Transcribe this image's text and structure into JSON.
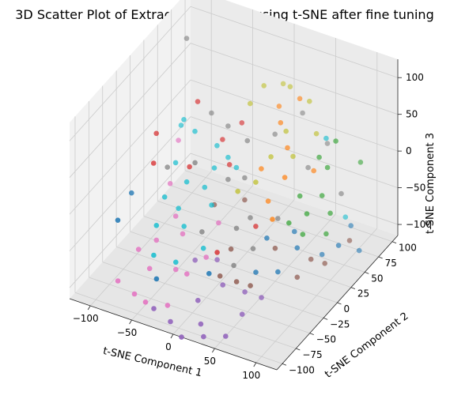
{
  "chart_data": {
    "type": "scatter3d",
    "title": "3D Scatter Plot of Extracted Features using t-SNE after fine tuning",
    "xlabel": "t-SNE Component 1",
    "ylabel": "t-SNE Component 2",
    "zlabel": "t-SNE Component 3",
    "xlim": [
      -125,
      125
    ],
    "ylim": [
      -110,
      110
    ],
    "zlim": [
      -115,
      125
    ],
    "xticks": [
      -100,
      -50,
      0,
      50,
      100
    ],
    "yticks": [
      -100,
      -75,
      -50,
      -25,
      0,
      25,
      50,
      75,
      100
    ],
    "zticks": [
      -100,
      -50,
      0,
      50,
      100
    ],
    "grid": true,
    "colors": {
      "blue": "#1f77b4",
      "orange": "#ff7f0e",
      "green": "#2ca02c",
      "red": "#d62728",
      "purple": "#9467bd",
      "brown": "#8c564b",
      "pink": "#e377c2",
      "gray": "#7f7f7f",
      "olive": "#bcbd22",
      "cyan": "#17becf"
    },
    "points": [
      {
        "x": -90,
        "y": 50,
        "z": 120,
        "c": "gray"
      },
      {
        "x": 40,
        "y": 60,
        "z": 80,
        "c": "orange"
      },
      {
        "x": 15,
        "y": 60,
        "z": 60,
        "c": "orange"
      },
      {
        "x": 30,
        "y": 40,
        "z": 60,
        "c": "orange"
      },
      {
        "x": 45,
        "y": 30,
        "z": 40,
        "c": "orange"
      },
      {
        "x": 55,
        "y": 10,
        "z": 20,
        "c": "orange"
      },
      {
        "x": 70,
        "y": 40,
        "z": 10,
        "c": "orange"
      },
      {
        "x": 20,
        "y": 20,
        "z": 10,
        "c": "orange"
      },
      {
        "x": 60,
        "y": -20,
        "z": -10,
        "c": "orange"
      },
      {
        "x": 35,
        "y": 10,
        "z": -20,
        "c": "orange"
      },
      {
        "x": -10,
        "y": 70,
        "z": 70,
        "c": "olive"
      },
      {
        "x": 15,
        "y": 80,
        "z": 70,
        "c": "olive"
      },
      {
        "x": 45,
        "y": 70,
        "z": 70,
        "c": "olive"
      },
      {
        "x": 0,
        "y": 90,
        "z": 60,
        "c": "olive"
      },
      {
        "x": -20,
        "y": 60,
        "z": 50,
        "c": "olive"
      },
      {
        "x": 30,
        "y": 50,
        "z": 40,
        "c": "olive"
      },
      {
        "x": 60,
        "y": 60,
        "z": 40,
        "c": "olive"
      },
      {
        "x": 25,
        "y": 30,
        "z": 20,
        "c": "olive"
      },
      {
        "x": 45,
        "y": 40,
        "z": 20,
        "c": "olive"
      },
      {
        "x": 20,
        "y": 10,
        "z": 0,
        "c": "olive"
      },
      {
        "x": 5,
        "y": 0,
        "z": -10,
        "c": "olive"
      },
      {
        "x": 85,
        "y": 40,
        "z": 60,
        "c": "cyan"
      },
      {
        "x": -60,
        "y": 20,
        "z": 30,
        "c": "cyan"
      },
      {
        "x": -40,
        "y": 30,
        "z": 10,
        "c": "cyan"
      },
      {
        "x": -20,
        "y": 20,
        "z": 10,
        "c": "cyan"
      },
      {
        "x": -30,
        "y": 10,
        "z": 0,
        "c": "cyan"
      },
      {
        "x": -10,
        "y": 20,
        "z": 0,
        "c": "cyan"
      },
      {
        "x": -50,
        "y": -10,
        "z": -10,
        "c": "cyan"
      },
      {
        "x": -35,
        "y": 0,
        "z": -20,
        "c": "cyan"
      },
      {
        "x": -70,
        "y": -20,
        "z": -30,
        "c": "cyan"
      },
      {
        "x": -20,
        "y": -10,
        "z": -30,
        "c": "cyan"
      },
      {
        "x": -60,
        "y": -50,
        "z": -40,
        "c": "cyan"
      },
      {
        "x": -40,
        "y": -30,
        "z": -50,
        "c": "cyan"
      },
      {
        "x": -10,
        "y": -40,
        "z": -60,
        "c": "cyan"
      },
      {
        "x": -50,
        "y": -70,
        "z": -60,
        "c": "cyan"
      },
      {
        "x": -30,
        "y": -60,
        "z": -70,
        "c": "cyan"
      },
      {
        "x": 95,
        "y": 60,
        "z": -60,
        "c": "cyan"
      },
      {
        "x": -110,
        "y": -20,
        "z": -40,
        "c": "blue"
      },
      {
        "x": -100,
        "y": -60,
        "z": -40,
        "c": "blue"
      },
      {
        "x": -40,
        "y": -80,
        "z": -80,
        "c": "blue"
      },
      {
        "x": 10,
        "y": -60,
        "z": -70,
        "c": "blue"
      },
      {
        "x": 40,
        "y": 0,
        "z": -60,
        "c": "blue"
      },
      {
        "x": 60,
        "y": 20,
        "z": -60,
        "c": "blue"
      },
      {
        "x": 70,
        "y": 10,
        "z": -70,
        "c": "blue"
      },
      {
        "x": 100,
        "y": 40,
        "z": -80,
        "c": "blue"
      },
      {
        "x": 95,
        "y": 70,
        "z": -80,
        "c": "blue"
      },
      {
        "x": 40,
        "y": -20,
        "z": -90,
        "c": "blue"
      },
      {
        "x": 60,
        "y": -10,
        "z": -90,
        "c": "blue"
      },
      {
        "x": 80,
        "y": 40,
        "z": -100,
        "c": "blue"
      },
      {
        "x": 105,
        "y": 70,
        "z": -110,
        "c": "blue"
      },
      {
        "x": 90,
        "y": 50,
        "z": 50,
        "c": "green"
      },
      {
        "x": 70,
        "y": 50,
        "z": 20,
        "c": "green"
      },
      {
        "x": 80,
        "y": 50,
        "z": 10,
        "c": "green"
      },
      {
        "x": 100,
        "y": 80,
        "z": 0,
        "c": "green"
      },
      {
        "x": 60,
        "y": 30,
        "z": -20,
        "c": "green"
      },
      {
        "x": 80,
        "y": 40,
        "z": -20,
        "c": "green"
      },
      {
        "x": 75,
        "y": 20,
        "z": -30,
        "c": "green"
      },
      {
        "x": 90,
        "y": 40,
        "z": -40,
        "c": "green"
      },
      {
        "x": 60,
        "y": 10,
        "z": -40,
        "c": "green"
      },
      {
        "x": 70,
        "y": 20,
        "z": -60,
        "c": "green"
      },
      {
        "x": 85,
        "y": 40,
        "z": -70,
        "c": "green"
      },
      {
        "x": -70,
        "y": 40,
        "z": 50,
        "c": "red"
      },
      {
        "x": -100,
        "y": 10,
        "z": 20,
        "c": "red"
      },
      {
        "x": -30,
        "y": 60,
        "z": 20,
        "c": "red"
      },
      {
        "x": -40,
        "y": 40,
        "z": 10,
        "c": "red"
      },
      {
        "x": -90,
        "y": -10,
        "z": 0,
        "c": "red"
      },
      {
        "x": -60,
        "y": 10,
        "z": -10,
        "c": "red"
      },
      {
        "x": -25,
        "y": 30,
        "z": -10,
        "c": "red"
      },
      {
        "x": 20,
        "y": 10,
        "z": -60,
        "c": "red"
      },
      {
        "x": 0,
        "y": -30,
        "z": -70,
        "c": "red"
      },
      {
        "x": -80,
        "y": 20,
        "z": 10,
        "c": "pink"
      },
      {
        "x": -70,
        "y": -10,
        "z": -20,
        "c": "pink"
      },
      {
        "x": -50,
        "y": -30,
        "z": -40,
        "c": "pink"
      },
      {
        "x": -60,
        "y": -50,
        "z": -60,
        "c": "pink"
      },
      {
        "x": -35,
        "y": -40,
        "z": -50,
        "c": "pink"
      },
      {
        "x": -75,
        "y": -60,
        "z": -70,
        "c": "pink"
      },
      {
        "x": -55,
        "y": -70,
        "z": -80,
        "c": "pink"
      },
      {
        "x": -30,
        "y": -60,
        "z": -80,
        "c": "pink"
      },
      {
        "x": -80,
        "y": -90,
        "z": -90,
        "c": "pink"
      },
      {
        "x": -60,
        "y": -90,
        "z": -100,
        "c": "pink"
      },
      {
        "x": -40,
        "y": -100,
        "z": -95,
        "c": "pink"
      },
      {
        "x": -10,
        "y": -70,
        "z": -70,
        "c": "pink"
      },
      {
        "x": 0,
        "y": -50,
        "z": -60,
        "c": "pink"
      },
      {
        "x": -20,
        "y": -90,
        "z": -100,
        "c": "pink"
      },
      {
        "x": -5,
        "y": -20,
        "z": -40,
        "c": "pink"
      },
      {
        "x": -20,
        "y": -40,
        "z": -80,
        "c": "purple"
      },
      {
        "x": 0,
        "y": -30,
        "z": -80,
        "c": "purple"
      },
      {
        "x": 20,
        "y": -50,
        "z": -90,
        "c": "purple"
      },
      {
        "x": 10,
        "y": -80,
        "z": -90,
        "c": "purple"
      },
      {
        "x": 40,
        "y": -40,
        "z": -100,
        "c": "purple"
      },
      {
        "x": -10,
        "y": -100,
        "z": -110,
        "c": "purple"
      },
      {
        "x": 20,
        "y": -90,
        "z": -110,
        "c": "purple"
      },
      {
        "x": 50,
        "y": -60,
        "z": -110,
        "c": "purple"
      },
      {
        "x": 30,
        "y": -100,
        "z": -115,
        "c": "purple"
      },
      {
        "x": -30,
        "y": -100,
        "z": -100,
        "c": "purple"
      },
      {
        "x": 60,
        "y": -40,
        "z": -100,
        "c": "purple"
      },
      {
        "x": 50,
        "y": -90,
        "z": -115,
        "c": "purple"
      },
      {
        "x": 10,
        "y": -110,
        "z": -115,
        "c": "purple"
      },
      {
        "x": -40,
        "y": 50,
        "z": 20,
        "c": "gray"
      },
      {
        "x": -10,
        "y": 40,
        "z": 20,
        "c": "gray"
      },
      {
        "x": 10,
        "y": 60,
        "z": 20,
        "c": "gray"
      },
      {
        "x": -80,
        "y": 0,
        "z": -10,
        "c": "gray"
      },
      {
        "x": -20,
        "y": 20,
        "z": -20,
        "c": "gray"
      },
      {
        "x": 0,
        "y": 20,
        "z": -10,
        "c": "gray"
      },
      {
        "x": 50,
        "y": 60,
        "z": -10,
        "c": "gray"
      },
      {
        "x": 90,
        "y": 60,
        "z": -30,
        "c": "gray"
      },
      {
        "x": 20,
        "y": 0,
        "z": -40,
        "c": "gray"
      },
      {
        "x": 10,
        "y": -10,
        "z": -50,
        "c": "gray"
      },
      {
        "x": -25,
        "y": -20,
        "z": -60,
        "c": "gray"
      },
      {
        "x": 40,
        "y": 20,
        "z": -50,
        "c": "gray"
      },
      {
        "x": 30,
        "y": -10,
        "z": -70,
        "c": "gray"
      },
      {
        "x": 20,
        "y": -30,
        "z": -80,
        "c": "gray"
      },
      {
        "x": 30,
        "y": -40,
        "z": -90,
        "c": "brown"
      },
      {
        "x": 0,
        "y": 20,
        "z": -40,
        "c": "brown"
      },
      {
        "x": -30,
        "y": 10,
        "z": -50,
        "c": "brown"
      },
      {
        "x": 10,
        "y": -20,
        "z": -70,
        "c": "brown"
      },
      {
        "x": 50,
        "y": 0,
        "z": -70,
        "c": "brown"
      },
      {
        "x": 10,
        "y": -40,
        "z": -90,
        "c": "brown"
      },
      {
        "x": 40,
        "y": -30,
        "z": -100,
        "c": "brown"
      },
      {
        "x": 80,
        "y": 20,
        "z": -90,
        "c": "brown"
      },
      {
        "x": 100,
        "y": 60,
        "z": -90,
        "c": "brown"
      },
      {
        "x": 90,
        "y": 30,
        "z": -100,
        "c": "brown"
      },
      {
        "x": 70,
        "y": 10,
        "z": -110,
        "c": "brown"
      },
      {
        "x": -60,
        "y": 50,
        "z": 30,
        "c": "gray"
      },
      {
        "x": 30,
        "y": 80,
        "z": 40,
        "c": "gray"
      },
      {
        "x": 60,
        "y": 80,
        "z": 10,
        "c": "gray"
      },
      {
        "x": -40,
        "y": -10,
        "z": 20,
        "c": "gray"
      },
      {
        "x": -80,
        "y": 30,
        "z": 30,
        "c": "cyan"
      },
      {
        "x": -90,
        "y": 40,
        "z": 10,
        "c": "cyan"
      },
      {
        "x": -70,
        "y": 0,
        "z": 0,
        "c": "cyan"
      },
      {
        "x": -60,
        "y": -10,
        "z": -50,
        "c": "cyan"
      }
    ]
  }
}
